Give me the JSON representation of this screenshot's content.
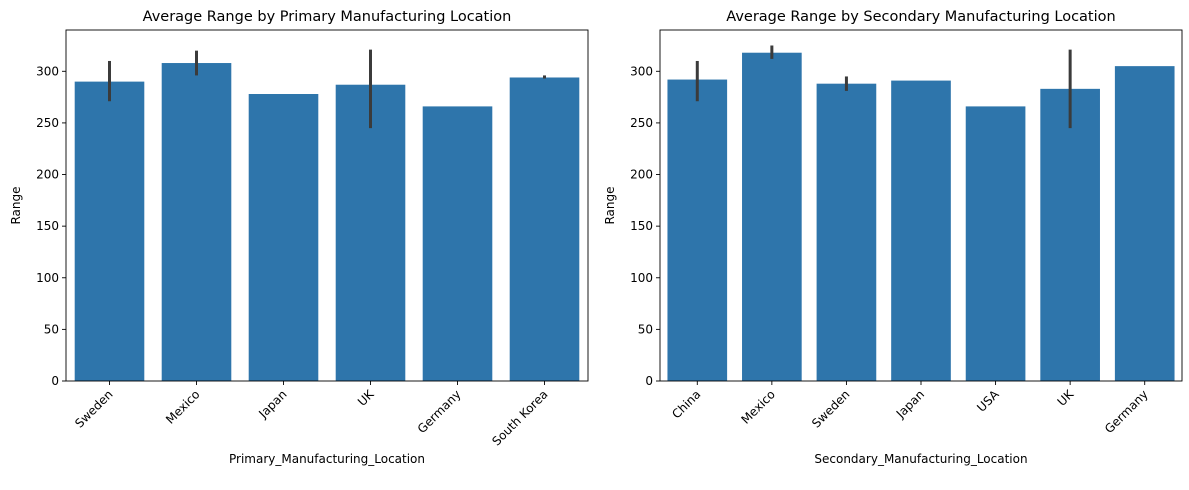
{
  "chart_data": [
    {
      "type": "bar",
      "title": "Average Range by Primary Manufacturing Location",
      "xlabel": "Primary_Manufacturing_Location",
      "ylabel": "Range",
      "ylim": [
        0,
        340
      ],
      "yticks": [
        0,
        50,
        100,
        150,
        200,
        250,
        300
      ],
      "color": "#2e75ab",
      "errorbar_color": "#3b3b3b",
      "categories": [
        "Sweden",
        "Mexico",
        "Japan",
        "UK",
        "Germany",
        "South Korea"
      ],
      "values": [
        290,
        308,
        278,
        287,
        266,
        294
      ],
      "error_low": [
        271,
        296,
        null,
        245,
        null,
        293
      ],
      "error_high": [
        310,
        320,
        null,
        321,
        null,
        296
      ]
    },
    {
      "type": "bar",
      "title": "Average Range by Secondary Manufacturing Location",
      "xlabel": "Secondary_Manufacturing_Location",
      "ylabel": "Range",
      "ylim": [
        0,
        340
      ],
      "yticks": [
        0,
        50,
        100,
        150,
        200,
        250,
        300
      ],
      "color": "#2e75ab",
      "errorbar_color": "#3b3b3b",
      "categories": [
        "China",
        "Mexico",
        "Sweden",
        "Japan",
        "USA",
        "UK",
        "Germany"
      ],
      "values": [
        292,
        318,
        288,
        291,
        266,
        283,
        305
      ],
      "error_low": [
        271,
        312,
        281,
        null,
        null,
        245,
        null
      ],
      "error_high": [
        310,
        325,
        295,
        null,
        null,
        321,
        null
      ]
    }
  ]
}
